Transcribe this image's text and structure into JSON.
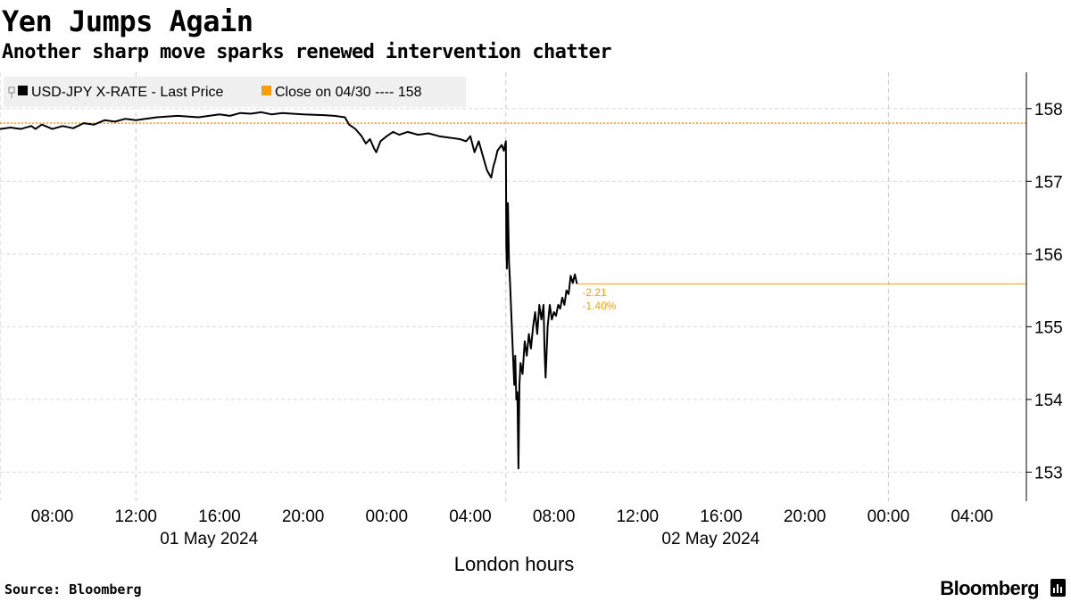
{
  "title": "Yen Jumps Again",
  "subtitle": "Another sharp move sparks renewed intervention chatter",
  "source": "Source: Bloomberg",
  "brand": "Bloomberg",
  "chart_data": {
    "type": "line",
    "xlabel": "London hours",
    "ylabel": "",
    "x_range_hours": [
      -18.5,
      30.6
    ],
    "ylim": [
      152.6,
      158.5
    ],
    "y_ticks": [
      153,
      154,
      155,
      156,
      157,
      158
    ],
    "x_ticks": [
      {
        "label": "08:00",
        "h": -16
      },
      {
        "label": "12:00",
        "h": -12
      },
      {
        "label": "16:00",
        "h": -8
      },
      {
        "label": "20:00",
        "h": -4
      },
      {
        "label": "00:00",
        "h": 0
      },
      {
        "label": "04:00",
        "h": 4
      },
      {
        "label": "08:00",
        "h": 8
      },
      {
        "label": "12:00",
        "h": 12
      },
      {
        "label": "16:00",
        "h": 16
      },
      {
        "label": "20:00",
        "h": 20
      },
      {
        "label": "00:00",
        "h": 24
      },
      {
        "label": "04:00",
        "h": 28
      }
    ],
    "date_labels": [
      {
        "label": "01 May 2024",
        "h": -8.5
      },
      {
        "label": "02 May 2024",
        "h": 15.5
      }
    ],
    "grid_lines_h": [
      -18.5,
      -12,
      5.7,
      24
    ],
    "legend": [
      {
        "name": "USD-JPY X-RATE - Last Price",
        "color": "#000000"
      },
      {
        "name": "Close on 04/30 ---- 158",
        "color": "#ff9c00"
      }
    ],
    "reference_close": 157.8,
    "last_value": 155.59,
    "annotation_change": "-2.21",
    "annotation_pct": "-1.40%",
    "accent_color": "#ff9c00",
    "series": [
      {
        "name": "USD-JPY X-RATE - Last Price",
        "color": "#000000",
        "points": [
          [
            -18.5,
            157.72
          ],
          [
            -18.0,
            157.74
          ],
          [
            -17.5,
            157.72
          ],
          [
            -17.0,
            157.76
          ],
          [
            -16.8,
            157.72
          ],
          [
            -16.5,
            157.78
          ],
          [
            -16.0,
            157.72
          ],
          [
            -15.5,
            157.76
          ],
          [
            -15.0,
            157.73
          ],
          [
            -14.5,
            157.8
          ],
          [
            -14.0,
            157.78
          ],
          [
            -13.5,
            157.84
          ],
          [
            -13.0,
            157.82
          ],
          [
            -12.5,
            157.86
          ],
          [
            -12.0,
            157.84
          ],
          [
            -11.0,
            157.88
          ],
          [
            -10.0,
            157.9
          ],
          [
            -9.0,
            157.88
          ],
          [
            -8.0,
            157.92
          ],
          [
            -7.5,
            157.9
          ],
          [
            -7.0,
            157.94
          ],
          [
            -6.5,
            157.93
          ],
          [
            -6.0,
            157.95
          ],
          [
            -5.5,
            157.92
          ],
          [
            -5.0,
            157.94
          ],
          [
            -4.0,
            157.92
          ],
          [
            -3.0,
            157.91
          ],
          [
            -2.5,
            157.9
          ],
          [
            -2.0,
            157.88
          ],
          [
            -1.8,
            157.78
          ],
          [
            -1.5,
            157.72
          ],
          [
            -1.2,
            157.62
          ],
          [
            -1.0,
            157.52
          ],
          [
            -0.8,
            157.58
          ],
          [
            -0.6,
            157.45
          ],
          [
            -0.5,
            157.4
          ],
          [
            -0.3,
            157.55
          ],
          [
            0.0,
            157.62
          ],
          [
            0.3,
            157.68
          ],
          [
            0.6,
            157.64
          ],
          [
            1.0,
            157.68
          ],
          [
            1.5,
            157.64
          ],
          [
            2.0,
            157.66
          ],
          [
            2.5,
            157.62
          ],
          [
            3.0,
            157.6
          ],
          [
            3.5,
            157.58
          ],
          [
            3.8,
            157.55
          ],
          [
            4.0,
            157.62
          ],
          [
            4.2,
            157.4
          ],
          [
            4.4,
            157.55
          ],
          [
            4.6,
            157.35
          ],
          [
            4.8,
            157.15
          ],
          [
            5.0,
            157.05
          ],
          [
            5.1,
            157.2
          ],
          [
            5.2,
            157.3
          ],
          [
            5.3,
            157.42
          ],
          [
            5.5,
            157.5
          ],
          [
            5.6,
            157.42
          ],
          [
            5.7,
            157.55
          ],
          [
            5.72,
            156.1
          ],
          [
            5.75,
            155.8
          ],
          [
            5.8,
            156.7
          ],
          [
            5.85,
            155.9
          ],
          [
            5.9,
            155.6
          ],
          [
            6.0,
            154.9
          ],
          [
            6.1,
            154.2
          ],
          [
            6.15,
            154.6
          ],
          [
            6.2,
            154.0
          ],
          [
            6.25,
            154.1
          ],
          [
            6.3,
            153.05
          ],
          [
            6.35,
            154.2
          ],
          [
            6.4,
            154.5
          ],
          [
            6.5,
            154.35
          ],
          [
            6.6,
            154.8
          ],
          [
            6.7,
            154.6
          ],
          [
            6.8,
            154.9
          ],
          [
            6.9,
            154.7
          ],
          [
            7.0,
            155.0
          ],
          [
            7.1,
            155.2
          ],
          [
            7.2,
            154.9
          ],
          [
            7.3,
            155.3
          ],
          [
            7.4,
            155.1
          ],
          [
            7.5,
            155.3
          ],
          [
            7.55,
            154.7
          ],
          [
            7.6,
            154.3
          ],
          [
            7.7,
            155.0
          ],
          [
            7.8,
            155.3
          ],
          [
            7.9,
            155.1
          ],
          [
            8.0,
            155.2
          ],
          [
            8.1,
            155.15
          ],
          [
            8.2,
            155.3
          ],
          [
            8.3,
            155.25
          ],
          [
            8.4,
            155.4
          ],
          [
            8.5,
            155.3
          ],
          [
            8.6,
            155.5
          ],
          [
            8.7,
            155.45
          ],
          [
            8.8,
            155.7
          ],
          [
            8.9,
            155.6
          ],
          [
            9.0,
            155.72
          ],
          [
            9.1,
            155.59
          ]
        ]
      }
    ]
  }
}
